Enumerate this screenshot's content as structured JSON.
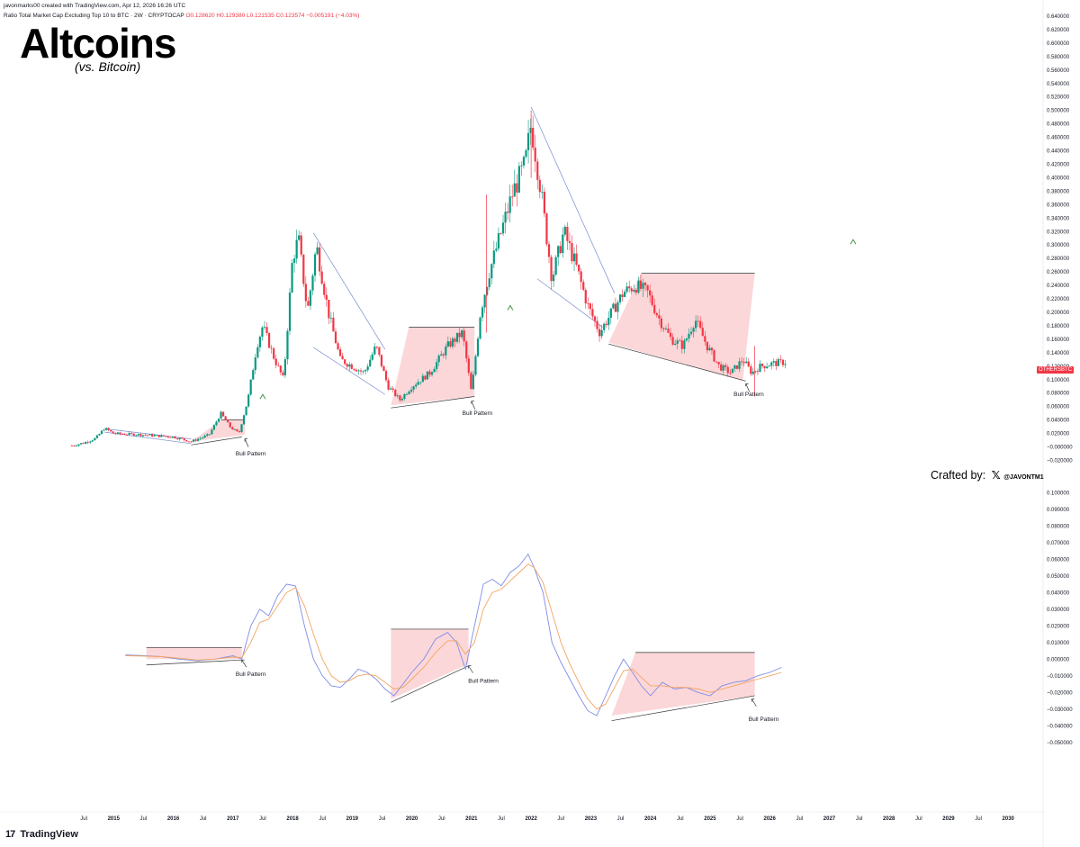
{
  "header": {
    "created_line": "javonmarks00 created with TradingView.com, Apr 12, 2026 16:26 UTC",
    "symbol_line": "Ratio Total Market Cap Excluding Top 10 to BTC · 2W · CRYPTOCAP",
    "ohlc": "O0.128620 H0.129380 L0.121535 C0.123574 −0.005191 (−4.03%)"
  },
  "title": "Altcoins",
  "subtitle": "(vs. Bitcoin)",
  "ticker_label": "OTHERSBTC",
  "crafted": {
    "text": "Crafted by:",
    "x_symbol": "𝕏",
    "handle": "@JAVONTM1"
  },
  "brand": {
    "mark": "17",
    "name": "TradingView"
  },
  "colors": {
    "up": "#089981",
    "down": "#f23645",
    "macd": "#7f8be8",
    "signal": "#f4a460",
    "box": "#f9c9cc",
    "trend": "#7b8ccf",
    "arrow": "#3b8a3b"
  },
  "annotations": {
    "bull_pattern": "Bull Pattern"
  },
  "chart_data": [
    {
      "type": "candlestick",
      "name": "OTHERSBTC",
      "ylim": [
        -0.03,
        0.64
      ],
      "y_ticks": [
        "0.640000",
        "0.620000",
        "0.600000",
        "0.580000",
        "0.560000",
        "0.540000",
        "0.520000",
        "0.500000",
        "0.480000",
        "0.460000",
        "0.440000",
        "0.420000",
        "0.400000",
        "0.380000",
        "0.360000",
        "0.340000",
        "0.320000",
        "0.300000",
        "0.280000",
        "0.260000",
        "0.240000",
        "0.220000",
        "0.200000",
        "0.180000",
        "0.160000",
        "0.140000",
        "0.120000",
        "0.100000",
        "0.080000",
        "0.060000",
        "0.040000",
        "0.020000",
        "−0.000000",
        "−0.020000"
      ],
      "price_path": [
        [
          2014.3,
          0.002
        ],
        [
          2014.5,
          0.006
        ],
        [
          2014.7,
          0.013
        ],
        [
          2014.85,
          0.028
        ],
        [
          2015.0,
          0.02
        ],
        [
          2015.5,
          0.018
        ],
        [
          2016.0,
          0.015
        ],
        [
          2016.3,
          0.008
        ],
        [
          2016.6,
          0.018
        ],
        [
          2016.8,
          0.05
        ],
        [
          2016.95,
          0.03
        ],
        [
          2017.1,
          0.02
        ],
        [
          2017.25,
          0.07
        ],
        [
          2017.4,
          0.15
        ],
        [
          2017.5,
          0.18
        ],
        [
          2017.7,
          0.13
        ],
        [
          2017.85,
          0.1
        ],
        [
          2018.0,
          0.28
        ],
        [
          2018.1,
          0.31
        ],
        [
          2018.25,
          0.2
        ],
        [
          2018.4,
          0.3
        ],
        [
          2018.6,
          0.2
        ],
        [
          2018.8,
          0.13
        ],
        [
          2019.0,
          0.12
        ],
        [
          2019.2,
          0.11
        ],
        [
          2019.4,
          0.15
        ],
        [
          2019.6,
          0.09
        ],
        [
          2019.8,
          0.07
        ],
        [
          2020.0,
          0.09
        ],
        [
          2020.3,
          0.11
        ],
        [
          2020.6,
          0.15
        ],
        [
          2020.85,
          0.17
        ],
        [
          2021.0,
          0.08
        ],
        [
          2021.15,
          0.2
        ],
        [
          2021.3,
          0.26
        ],
        [
          2021.5,
          0.32
        ],
        [
          2021.7,
          0.38
        ],
        [
          2021.9,
          0.42
        ],
        [
          2022.0,
          0.48
        ],
        [
          2022.15,
          0.39
        ],
        [
          2022.35,
          0.25
        ],
        [
          2022.55,
          0.32
        ],
        [
          2022.75,
          0.27
        ],
        [
          2022.95,
          0.21
        ],
        [
          2023.15,
          0.17
        ],
        [
          2023.35,
          0.2
        ],
        [
          2023.55,
          0.23
        ],
        [
          2023.75,
          0.24
        ],
        [
          2023.95,
          0.23
        ],
        [
          2024.15,
          0.19
        ],
        [
          2024.35,
          0.16
        ],
        [
          2024.55,
          0.15
        ],
        [
          2024.75,
          0.19
        ],
        [
          2024.95,
          0.15
        ],
        [
          2025.15,
          0.12
        ],
        [
          2025.35,
          0.11
        ],
        [
          2025.55,
          0.13
        ],
        [
          2025.7,
          0.11
        ],
        [
          2025.85,
          0.12
        ],
        [
          2026.05,
          0.124
        ],
        [
          2026.25,
          0.126
        ]
      ]
    },
    {
      "type": "line",
      "name": "oscillator",
      "ylim": [
        -0.055,
        0.105
      ],
      "y_ticks": [
        "0.100000",
        "0.090000",
        "0.080000",
        "0.070000",
        "0.060000",
        "0.050000",
        "0.040000",
        "0.030000",
        "0.020000",
        "0.010000",
        "0.000000",
        "−0.010000",
        "−0.020000",
        "−0.030000",
        "−0.040000",
        "−0.050000"
      ],
      "series": [
        {
          "x": [
            2015.2,
            2015.5,
            2015.8,
            2016.1,
            2016.4,
            2016.7,
            2017.0,
            2017.15,
            2017.3,
            2017.45,
            2017.6,
            2017.75,
            2017.9,
            2018.05,
            2018.2,
            2018.35,
            2018.5,
            2018.65,
            2018.8,
            2018.95,
            2019.1,
            2019.25,
            2019.4,
            2019.55,
            2019.7,
            2019.85,
            2020.0,
            2020.2,
            2020.4,
            2020.6,
            2020.75,
            2020.9,
            2021.05,
            2021.2,
            2021.35,
            2021.5,
            2021.65,
            2021.8,
            2021.95,
            2022.05,
            2022.2,
            2022.35,
            2022.5,
            2022.65,
            2022.8,
            2022.95,
            2023.1,
            2023.25,
            2023.4,
            2023.55,
            2023.7,
            2023.85,
            2024.0,
            2024.2,
            2024.4,
            2024.6,
            2024.8,
            2025.0,
            2025.2,
            2025.4,
            2025.6,
            2025.8,
            2026.0,
            2026.2
          ],
          "values": [
            0.0025,
            0.002,
            0.0015,
            0.0,
            -0.001,
            0.0,
            0.002,
            0.0,
            0.02,
            0.03,
            0.026,
            0.038,
            0.045,
            0.044,
            0.02,
            0.0,
            -0.01,
            -0.016,
            -0.017,
            -0.012,
            -0.006,
            -0.008,
            -0.012,
            -0.018,
            -0.022,
            -0.015,
            -0.008,
            0.0,
            0.012,
            0.016,
            0.01,
            -0.006,
            0.02,
            0.045,
            0.048,
            0.044,
            0.052,
            0.056,
            0.063,
            0.055,
            0.04,
            0.01,
            -0.002,
            -0.012,
            -0.022,
            -0.031,
            -0.034,
            -0.022,
            -0.01,
            0.0,
            -0.008,
            -0.016,
            -0.022,
            -0.014,
            -0.018,
            -0.017,
            -0.02,
            -0.022,
            -0.016,
            -0.014,
            -0.013,
            -0.01,
            -0.008,
            -0.005
          ]
        },
        {
          "x": [
            2015.2,
            2015.5,
            2015.8,
            2016.1,
            2016.4,
            2016.7,
            2017.0,
            2017.15,
            2017.3,
            2017.45,
            2017.6,
            2017.75,
            2017.9,
            2018.05,
            2018.2,
            2018.35,
            2018.5,
            2018.65,
            2018.8,
            2018.95,
            2019.1,
            2019.25,
            2019.4,
            2019.55,
            2019.7,
            2019.85,
            2020.0,
            2020.2,
            2020.4,
            2020.6,
            2020.75,
            2020.9,
            2021.05,
            2021.2,
            2021.35,
            2021.5,
            2021.65,
            2021.8,
            2021.95,
            2022.05,
            2022.2,
            2022.35,
            2022.5,
            2022.65,
            2022.8,
            2022.95,
            2023.1,
            2023.25,
            2023.4,
            2023.55,
            2023.7,
            2023.85,
            2024.0,
            2024.2,
            2024.4,
            2024.6,
            2024.8,
            2025.0,
            2025.2,
            2025.4,
            2025.6,
            2025.8,
            2026.0,
            2026.2
          ],
          "values": [
            0.002,
            0.0018,
            0.0015,
            0.0005,
            -0.0005,
            0.0,
            0.0012,
            0.001,
            0.01,
            0.022,
            0.024,
            0.032,
            0.04,
            0.043,
            0.032,
            0.015,
            0.0,
            -0.01,
            -0.014,
            -0.013,
            -0.01,
            -0.009,
            -0.01,
            -0.014,
            -0.018,
            -0.017,
            -0.012,
            -0.005,
            0.004,
            0.011,
            0.011,
            0.003,
            0.01,
            0.03,
            0.04,
            0.042,
            0.047,
            0.052,
            0.057,
            0.055,
            0.046,
            0.028,
            0.01,
            -0.003,
            -0.014,
            -0.024,
            -0.03,
            -0.027,
            -0.017,
            -0.007,
            -0.006,
            -0.011,
            -0.016,
            -0.016,
            -0.017,
            -0.017,
            -0.018,
            -0.02,
            -0.018,
            -0.016,
            -0.014,
            -0.012,
            -0.01,
            -0.008
          ]
        }
      ]
    }
  ],
  "x_axis": {
    "labels": [
      "Jul",
      "2015",
      "Jul",
      "2016",
      "Jul",
      "2017",
      "Jul",
      "2018",
      "Jul",
      "2019",
      "Jul",
      "2020",
      "Jul",
      "2021",
      "Jul",
      "2022",
      "Jul",
      "2023",
      "Jul",
      "2024",
      "Jul",
      "2025",
      "Jul",
      "2026",
      "Jul",
      "2027",
      "Jul",
      "2028",
      "Jul",
      "2029",
      "Jul",
      "2030"
    ]
  }
}
